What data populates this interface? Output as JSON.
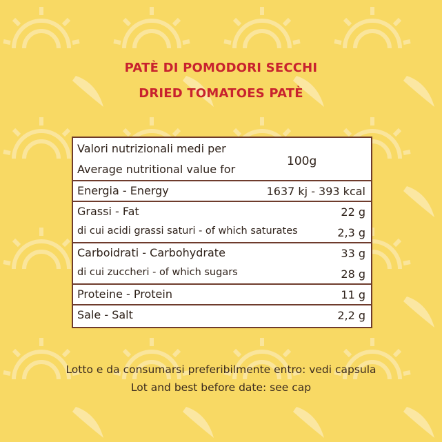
{
  "title": [
    "PATÈ DI POMODORI SECCHI",
    "DRIED TOMATOES PATÈ"
  ],
  "table": {
    "header": {
      "labels": [
        "Valori nutrizionali medi per",
        "Average nutritional value for"
      ],
      "amount": "100g"
    },
    "groups": [
      [
        [
          "Energia - Energy",
          "1637 kj - 393 kcal"
        ]
      ],
      [
        [
          "Grassi - Fat",
          "22 g"
        ],
        [
          "di cui acidi grassi saturi - of which saturates",
          "2,3 g"
        ]
      ],
      [
        [
          "Carboidrati - Carbohydrate",
          "33 g"
        ],
        [
          "di cui zuccheri - of which sugars",
          "28 g"
        ]
      ],
      [
        [
          "Proteine - Protein",
          "11 g"
        ]
      ],
      [
        [
          "Sale - Salt",
          "2,2 g"
        ]
      ]
    ]
  },
  "footer": [
    "Lotto e da consumarsi preferibilmente entro: vedi capsula",
    "Lot and best before date: see cap"
  ]
}
